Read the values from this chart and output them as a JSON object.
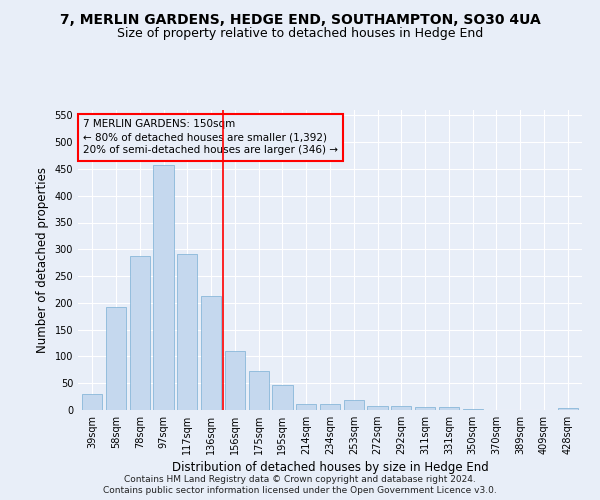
{
  "title1": "7, MERLIN GARDENS, HEDGE END, SOUTHAMPTON, SO30 4UA",
  "title2": "Size of property relative to detached houses in Hedge End",
  "xlabel": "Distribution of detached houses by size in Hedge End",
  "ylabel": "Number of detached properties",
  "categories": [
    "39sqm",
    "58sqm",
    "78sqm",
    "97sqm",
    "117sqm",
    "136sqm",
    "156sqm",
    "175sqm",
    "195sqm",
    "214sqm",
    "234sqm",
    "253sqm",
    "272sqm",
    "292sqm",
    "311sqm",
    "331sqm",
    "350sqm",
    "370sqm",
    "389sqm",
    "409sqm",
    "428sqm"
  ],
  "values": [
    30,
    192,
    288,
    458,
    291,
    213,
    110,
    73,
    47,
    12,
    12,
    18,
    8,
    7,
    5,
    5,
    2,
    0,
    0,
    0,
    4
  ],
  "bar_color": "#c5d8ee",
  "bar_edge_color": "#7aafd4",
  "vline_x": 5.5,
  "vline_color": "red",
  "annotation_text": "7 MERLIN GARDENS: 150sqm\n← 80% of detached houses are smaller (1,392)\n20% of semi-detached houses are larger (346) →",
  "annotation_box_color": "red",
  "ylim": [
    0,
    560
  ],
  "yticks": [
    0,
    50,
    100,
    150,
    200,
    250,
    300,
    350,
    400,
    450,
    500,
    550
  ],
  "footnote1": "Contains HM Land Registry data © Crown copyright and database right 2024.",
  "footnote2": "Contains public sector information licensed under the Open Government Licence v3.0.",
  "bg_color": "#e8eef8",
  "grid_color": "#ffffff",
  "title_fontsize": 10,
  "subtitle_fontsize": 9,
  "axis_label_fontsize": 8.5,
  "tick_fontsize": 7,
  "footnote_fontsize": 6.5,
  "annotation_fontsize": 7.5
}
